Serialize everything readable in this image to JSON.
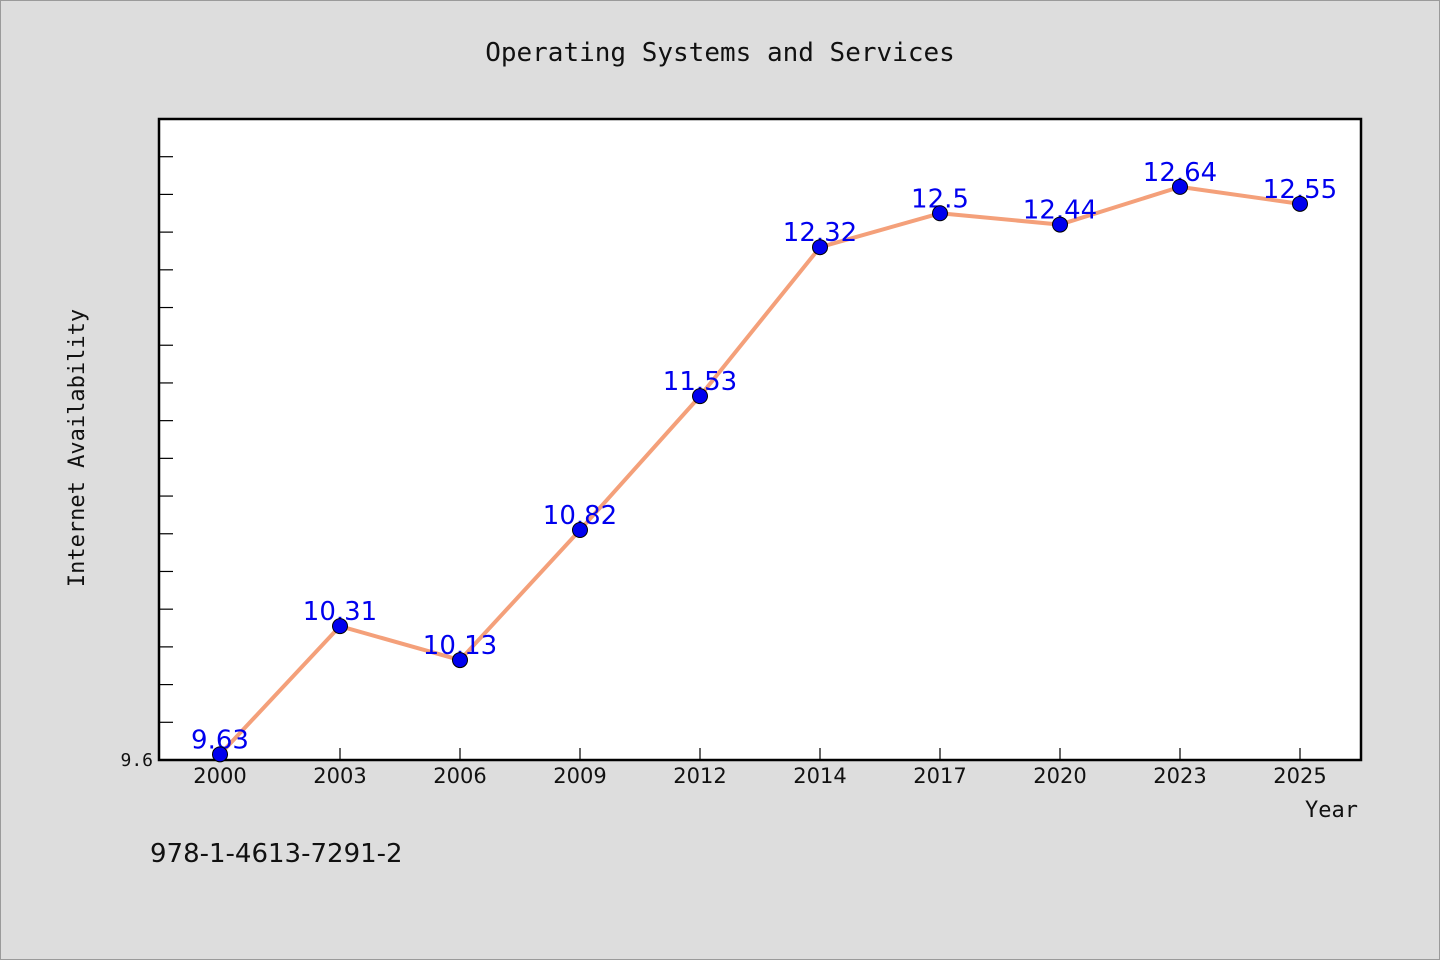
{
  "chart_data": {
    "type": "line",
    "title": "Operating Systems and Services",
    "xlabel": "Year",
    "ylabel": "Internet Availability",
    "categories": [
      "2000",
      "2003",
      "2006",
      "2009",
      "2012",
      "2014",
      "2017",
      "2020",
      "2023",
      "2025"
    ],
    "series": [
      {
        "values": [
          9.63,
          10.31,
          10.13,
          10.82,
          11.53,
          12.32,
          12.5,
          12.44,
          12.64,
          12.55
        ]
      }
    ],
    "ylim": [
      9.6,
      13.0
    ],
    "y_tick_labels": [
      "9.6"
    ],
    "grid": false,
    "line_color": "#f4a07a",
    "marker_color": "#0000ee",
    "label_color": "#0000ee"
  },
  "footer": {
    "isbn": "978-1-4613-7291-2"
  }
}
